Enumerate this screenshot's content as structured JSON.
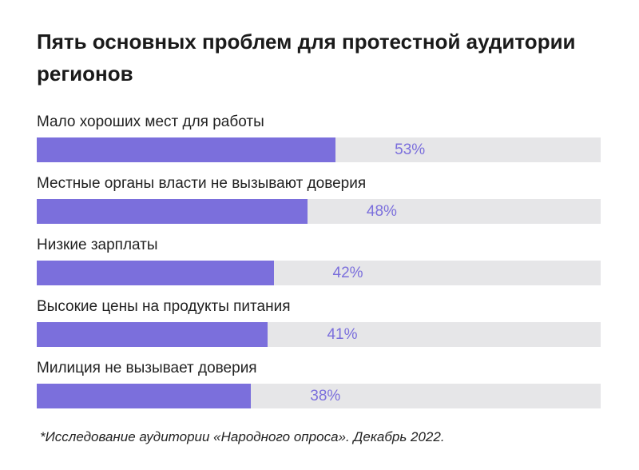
{
  "chart_data": {
    "type": "bar",
    "orientation": "horizontal",
    "title": "Пять основных проблем для протестной аудитории регионов",
    "categories": [
      "Мало хороших мест для работы",
      "Местные органы власти не вызывают доверия",
      "Низкие зарплаты",
      "Высокие цены на продукты питания",
      "Милиция не вызывает доверия"
    ],
    "values": [
      53,
      48,
      42,
      41,
      38
    ],
    "value_labels": [
      "53%",
      "48%",
      "42%",
      "41%",
      "38%"
    ],
    "xlim": [
      0,
      100
    ],
    "grid": false,
    "colors": {
      "bar": "#7b6fdc",
      "track": "#e6e6e8",
      "value_text": "#7b6fdc"
    },
    "footnote": "*Исследование аудитории «Народного опроса». Декабрь 2022."
  }
}
